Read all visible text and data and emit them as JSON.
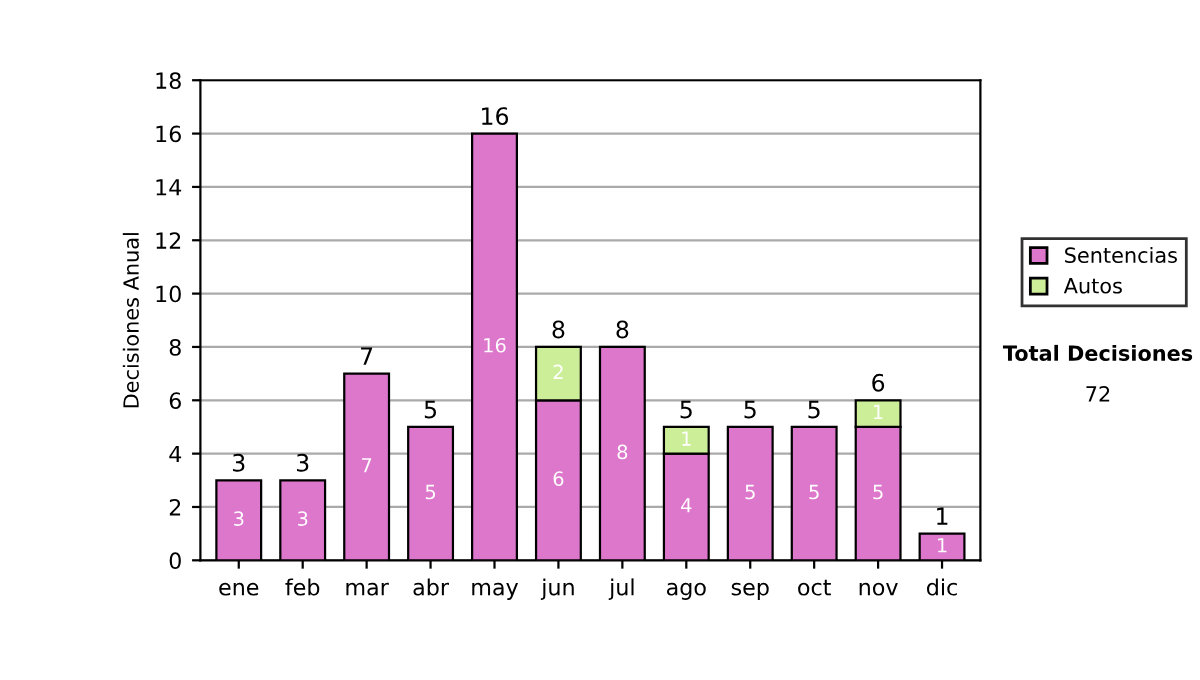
{
  "chart_data": {
    "type": "bar",
    "stacked": true,
    "ylabel": "Decisiones Anual",
    "categories": [
      "ene",
      "feb",
      "mar",
      "abr",
      "may",
      "jun",
      "jul",
      "ago",
      "sep",
      "oct",
      "nov",
      "dic"
    ],
    "series": [
      {
        "name": "Sentencias",
        "color": "#dd77cc",
        "values": [
          3,
          3,
          7,
          5,
          16,
          6,
          8,
          4,
          5,
          5,
          5,
          1
        ],
        "value_labels": [
          "3",
          "3",
          "7",
          "5",
          "16",
          "6",
          "8",
          "4",
          "5",
          "5",
          "5",
          "1"
        ]
      },
      {
        "name": "Autos",
        "color": "#ccee99",
        "values": [
          0,
          0,
          0,
          0,
          0,
          2,
          0,
          1,
          0,
          0,
          1,
          0
        ],
        "value_labels": [
          null,
          null,
          null,
          null,
          null,
          "2",
          null,
          "1",
          null,
          null,
          "1",
          null
        ]
      }
    ],
    "totals": [
      "3",
      "3",
      "7",
      "5",
      "16",
      "8",
      "8",
      "5",
      "5",
      "5",
      "6",
      "1"
    ],
    "ylim": [
      0,
      18
    ],
    "yticks": [
      0,
      2,
      4,
      6,
      8,
      10,
      12,
      14,
      16,
      18
    ],
    "grid": "y",
    "legend": "right",
    "annotations": [
      "Total Decisiones",
      "72"
    ]
  }
}
